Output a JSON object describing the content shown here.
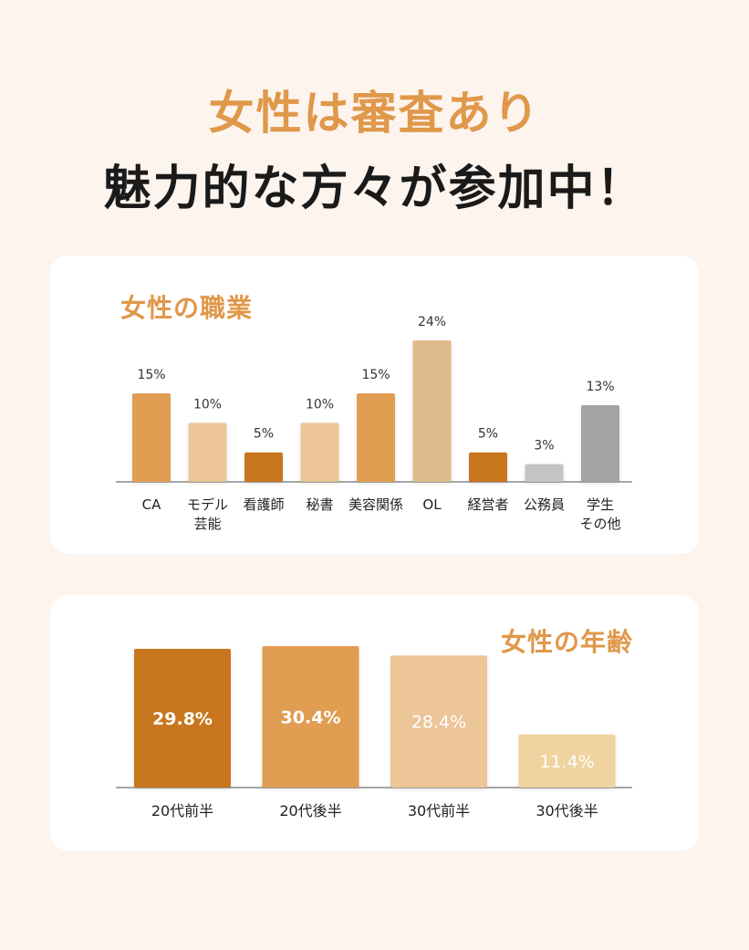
{
  "headline": {
    "line1": "女性は審査あり",
    "line2": "魅力的な方々が参加中！"
  },
  "chart_data": [
    {
      "type": "bar",
      "title": "女性の職業",
      "categories": [
        [
          "CA"
        ],
        [
          "モデル",
          "芸能"
        ],
        [
          "看護師"
        ],
        [
          "秘書"
        ],
        [
          "美容関係"
        ],
        [
          "OL"
        ],
        [
          "経営者"
        ],
        [
          "公務員"
        ],
        [
          "学生",
          "その他"
        ]
      ],
      "values": [
        15,
        10,
        5,
        10,
        15,
        24,
        5,
        3,
        13
      ],
      "value_labels": [
        "15%",
        "10%",
        "5%",
        "10%",
        "15%",
        "24%",
        "5%",
        "3%",
        "13%"
      ],
      "colors": [
        "#e19d52",
        "#ecc598",
        "#c7761d",
        "#ecc598",
        "#e19d52",
        "#dfbb8c",
        "#c7761d",
        "#c4c4c4",
        "#a3a3a3"
      ],
      "ylim": [
        0,
        24
      ]
    },
    {
      "type": "bar",
      "title": "女性の年齢",
      "categories": [
        "20代前半",
        "20代後半",
        "30代前半",
        "30代後半"
      ],
      "values": [
        29.8,
        30.4,
        28.4,
        11.4
      ],
      "value_labels": [
        "29.8%",
        "30.4%",
        "28.4%",
        "11.4%"
      ],
      "colors": [
        "#c7761d",
        "#e19d52",
        "#ecc598",
        "#f0d39e"
      ],
      "ylim": [
        0,
        30.4
      ]
    }
  ]
}
